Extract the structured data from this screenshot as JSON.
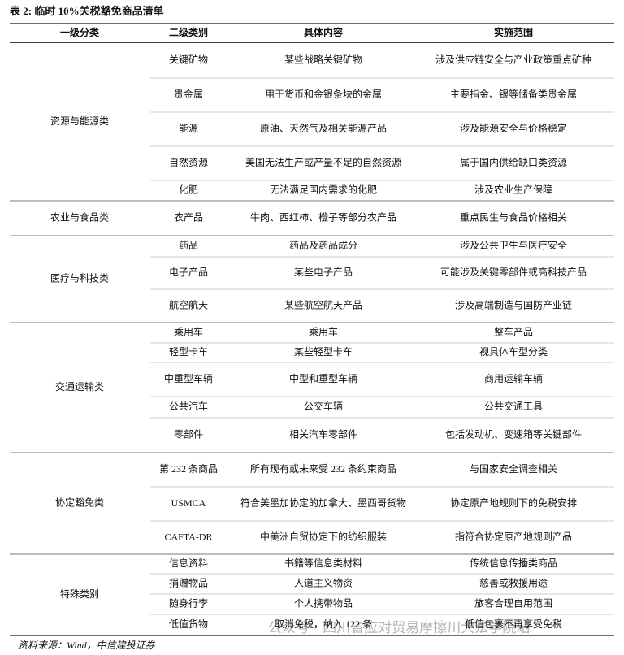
{
  "title": "表 2: 临时 10%关税豁免商品清单",
  "table": {
    "header": [
      "一级分类",
      "二级类别",
      "具体内容",
      "实施范围"
    ],
    "groups": [
      {
        "name": "资源与能源类",
        "rows": [
          [
            "关键矿物",
            "某些战略关键矿物",
            "涉及供应链安全与产业政策重点矿种"
          ],
          [
            "贵金属",
            "用于货币和金银条块的金属",
            "主要指金、银等储备类贵金属"
          ],
          [
            "能源",
            "原油、天然气及相关能源产品",
            "涉及能源安全与价格稳定"
          ],
          [
            "自然资源",
            "美国无法生产或产量不足的自然资源",
            "属于国内供给缺口类资源"
          ],
          [
            "化肥",
            "无法满足国内需求的化肥",
            "涉及农业生产保障"
          ]
        ]
      },
      {
        "name": "农业与食品类",
        "rows": [
          [
            "农产品",
            "牛肉、西红柿、橙子等部分农产品",
            "重点民生与食品价格相关"
          ]
        ]
      },
      {
        "name": "医疗与科技类",
        "rows": [
          [
            "药品",
            "药品及药品成分",
            "涉及公共卫生与医疗安全"
          ],
          [
            "电子产品",
            "某些电子产品",
            "可能涉及关键零部件或高科技产品"
          ],
          [
            "航空航天",
            "某些航空航天产品",
            "涉及高端制造与国防产业链"
          ]
        ]
      },
      {
        "name": "交通运输类",
        "rows": [
          [
            "乘用车",
            "乘用车",
            "整车产品"
          ],
          [
            "轻型卡车",
            "某些轻型卡车",
            "视具体车型分类"
          ],
          [
            "中重型车辆",
            "中型和重型车辆",
            "商用运输车辆"
          ],
          [
            "公共汽车",
            "公交车辆",
            "公共交通工具"
          ],
          [
            "零部件",
            "相关汽车零部件",
            "包括发动机、变速箱等关键部件"
          ]
        ]
      },
      {
        "name": "协定豁免类",
        "rows": [
          [
            "第 232 条商品",
            "所有现有或未来受 232 条约束商品",
            "与国家安全调查相关"
          ],
          [
            "USMCA",
            "符合美墨加协定的加拿大、墨西哥货物",
            "协定原产地规则下的免税安排"
          ],
          [
            "CAFTA-DR",
            "中美洲自贸协定下的纺织服装",
            "指符合协定原产地规则产品"
          ]
        ]
      },
      {
        "name": "特殊类别",
        "rows": [
          [
            "信息资料",
            "书籍等信息类材料",
            "传统信息传播类商品"
          ],
          [
            "捐赠物品",
            "人道主义物资",
            "慈善或救援用途"
          ],
          [
            "随身行李",
            "个人携带物品",
            "旅客合理自用范围"
          ],
          [
            "低值货物",
            "取消免税，纳入 122 条",
            "低值包裹不再享受免税"
          ]
        ]
      }
    ]
  },
  "source": "资料来源：Wind，中信建投证券",
  "watermark": "公众号 · 四川省应对贸易摩擦川大法学院站"
}
